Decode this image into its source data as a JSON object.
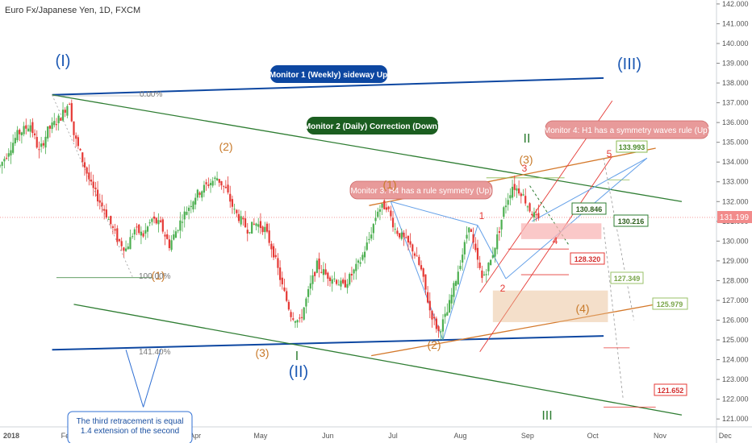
{
  "header": {
    "symbol_title": "Euro Fx/Japanese Yen, 1D, FXCM"
  },
  "colors": {
    "candle_up": "#4caf50",
    "candle_down": "#e53935",
    "blue_line": "#0d47a1",
    "green_line": "#2e7d32",
    "orange_line": "#d4782a",
    "red_line": "#e53935",
    "light_blue_line": "#64a0e8",
    "price_line": "#f28b8b"
  },
  "chart_data": {
    "type": "candlestick",
    "symbol": "Euro Fx/Japanese Yen",
    "timeframe": "1D",
    "source": "FXCM",
    "x_ticks": [
      "2018",
      "Feb",
      "Mar",
      "Apr",
      "May",
      "Jun",
      "Jul",
      "Aug",
      "Sep",
      "Oct",
      "Nov",
      "Dec"
    ],
    "y_ticks": [
      "121.000",
      "122.000",
      "123.000",
      "124.000",
      "125.000",
      "126.000",
      "127.000",
      "128.000",
      "129.000",
      "130.000",
      "131.000",
      "132.000",
      "133.000",
      "134.000",
      "135.000",
      "136.000",
      "137.000",
      "138.000",
      "139.000",
      "140.000",
      "141.000",
      "142.000"
    ],
    "ylim": [
      120.6,
      142.2
    ],
    "xlim": [
      0,
      330
    ],
    "current_price": "131.199",
    "candles_close_path": [
      [
        0,
        133.8
      ],
      [
        8,
        135.4
      ],
      [
        14,
        135.9
      ],
      [
        18,
        134.5
      ],
      [
        22,
        135.6
      ],
      [
        28,
        136.3
      ],
      [
        32,
        137.1
      ],
      [
        34,
        135.4
      ],
      [
        38,
        134.1
      ],
      [
        42,
        132.8
      ],
      [
        48,
        131.6
      ],
      [
        54,
        130.1
      ],
      [
        58,
        129.6
      ],
      [
        62,
        130.6
      ],
      [
        66,
        130.3
      ],
      [
        70,
        131.1
      ],
      [
        74,
        130.8
      ],
      [
        78,
        129.8
      ],
      [
        84,
        131.2
      ],
      [
        90,
        132.3
      ],
      [
        96,
        132.9
      ],
      [
        100,
        133.2
      ],
      [
        104,
        132.6
      ],
      [
        108,
        131.5
      ],
      [
        114,
        130.6
      ],
      [
        118,
        130.9
      ],
      [
        122,
        130.6
      ],
      [
        126,
        129.4
      ],
      [
        130,
        127.7
      ],
      [
        134,
        126.3
      ],
      [
        138,
        125.9
      ],
      [
        142,
        127.4
      ],
      [
        146,
        128.8
      ],
      [
        150,
        128.3
      ],
      [
        154,
        128.1
      ],
      [
        158,
        127.7
      ],
      [
        162,
        128.3
      ],
      [
        166,
        129.0
      ],
      [
        170,
        130.1
      ],
      [
        174,
        131.6
      ],
      [
        178,
        131.8
      ],
      [
        182,
        130.6
      ],
      [
        186,
        130.1
      ],
      [
        190,
        129.6
      ],
      [
        194,
        128.5
      ],
      [
        198,
        126.5
      ],
      [
        202,
        125.4
      ],
      [
        206,
        126.4
      ],
      [
        210,
        128.1
      ],
      [
        214,
        129.8
      ],
      [
        216,
        130.9
      ],
      [
        218,
        129.8
      ],
      [
        222,
        128.1
      ],
      [
        226,
        129.0
      ],
      [
        230,
        130.6
      ],
      [
        232,
        131.6
      ],
      [
        236,
        132.8
      ],
      [
        240,
        132.5
      ],
      [
        244,
        131.6
      ],
      [
        248,
        131.0
      ]
    ],
    "annotations": {
      "elliott_labels": [
        "(I)",
        "(II)",
        "(III)",
        "(1)",
        "(2)",
        "(3)",
        "(4)",
        "(1)",
        "(2)",
        "(3)",
        "(4)",
        "I",
        "II",
        "III",
        "1",
        "2",
        "3",
        "4",
        "5"
      ],
      "fib_levels": [
        "0.00%",
        "100.00%",
        "141.40%"
      ],
      "monitors": [
        "Monitor 1 (Weekly) sideway Up",
        "Monitor 2 (Daily) Correction (Down)",
        "Monitor 3: H4 has a rule symmetry (Up)",
        "Monitor 4: H1 has a symmetry waves rule (Up)"
      ],
      "price_labels": [
        "133.993",
        "130.846",
        "130.216",
        "128.320",
        "127.349",
        "125.979",
        "121.652"
      ],
      "note_text": "The third retracement is equal",
      "note_text_2": "1.4 extension of the second"
    }
  }
}
